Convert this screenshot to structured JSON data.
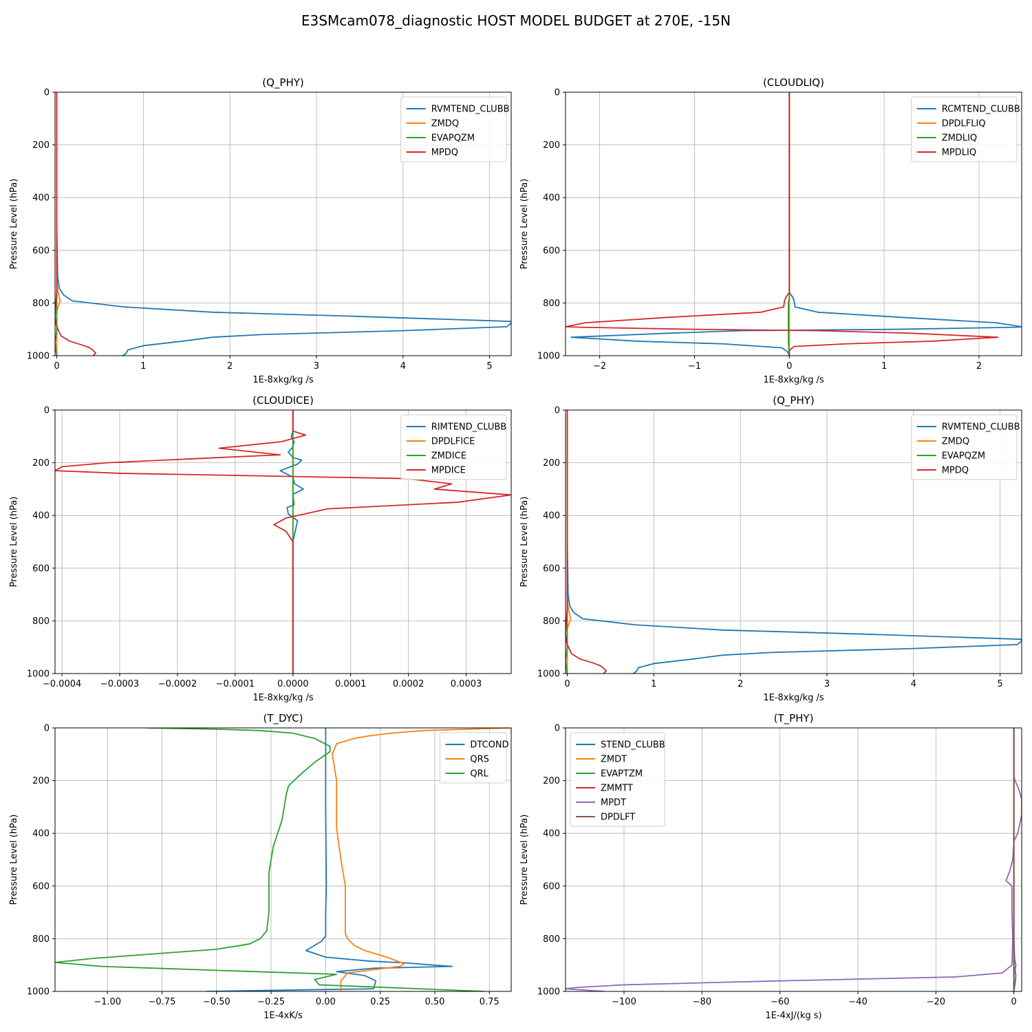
{
  "figure": {
    "title": "E3SMcam078_diagnostic HOST MODEL BUDGET at 270E, -15N"
  },
  "chart_data": [
    {
      "type": "line",
      "title": "(Q_PHY)",
      "xlabel": "1E-8xkg/kg /s",
      "ylabel": "Pressure Level (hPa)",
      "xlim": [
        -0.02,
        5.25
      ],
      "ylim": [
        1000,
        0
      ],
      "xticks": [
        0,
        1,
        2,
        3,
        4,
        5
      ],
      "xtick_labels": [
        "0",
        "1",
        "2",
        "3",
        "4",
        "5"
      ],
      "yticks": [
        0,
        200,
        400,
        600,
        800,
        1000
      ],
      "ytick_labels": [
        "0",
        "200",
        "400",
        "600",
        "800",
        "1000"
      ],
      "grid": true,
      "legend": "top-right",
      "series": [
        {
          "name": "RVMTEND_CLUBB",
          "color": "#1f77b4",
          "x": [
            0,
            0,
            0,
            0.01,
            0.03,
            0.08,
            0.18,
            0.78,
            1.8,
            3.4,
            5.25,
            5.25,
            5.2,
            4.0,
            2.35,
            1.8,
            1.45,
            1.0,
            0.82,
            0.8,
            0.76
          ],
          "y": [
            0,
            200,
            500,
            700,
            745,
            770,
            792,
            815,
            835,
            850,
            870,
            876,
            890,
            905,
            920,
            930,
            945,
            962,
            978,
            992,
            1000
          ]
        },
        {
          "name": "ZMDQ",
          "color": "#ff7f0e",
          "x": [
            0,
            0,
            0,
            0.01,
            0.03,
            0.04,
            0.02,
            0,
            0
          ],
          "y": [
            0,
            400,
            700,
            750,
            780,
            795,
            810,
            830,
            1000
          ]
        },
        {
          "name": "EVAPQZM",
          "color": "#2ca02c",
          "x": [
            0,
            0,
            0,
            -0.01,
            -0.02,
            -0.01,
            0
          ],
          "y": [
            0,
            700,
            900,
            930,
            950,
            980,
            1000
          ]
        },
        {
          "name": "MPDQ",
          "color": "#d62728",
          "x": [
            0,
            0,
            0,
            0,
            -0.01,
            -0.02,
            -0.01,
            0.02,
            0.05,
            0.15,
            0.3,
            0.38,
            0.42,
            0.45,
            0.42
          ],
          "y": [
            0,
            300,
            500,
            750,
            800,
            850,
            880,
            905,
            925,
            945,
            960,
            970,
            980,
            990,
            1000
          ]
        }
      ]
    },
    {
      "type": "line",
      "title": "(CLOUDLIQ)",
      "xlabel": "1E-8xkg/kg /s",
      "ylabel": "Pressure Level (hPa)",
      "xlim": [
        -2.36,
        2.45
      ],
      "ylim": [
        1000,
        0
      ],
      "xticks": [
        -2,
        -1,
        0,
        1,
        2
      ],
      "xtick_labels": [
        "−2",
        "−1",
        "0",
        "1",
        "2"
      ],
      "yticks": [
        0,
        200,
        400,
        600,
        800,
        1000
      ],
      "ytick_labels": [
        "0",
        "200",
        "400",
        "600",
        "800",
        "1000"
      ],
      "grid": true,
      "legend": "top-right",
      "series": [
        {
          "name": "RCMTEND_CLUBB",
          "color": "#1f77b4",
          "x": [
            0,
            0,
            0,
            0.03,
            0.05,
            0.06,
            0.3,
            1.2,
            2.18,
            2.45,
            2.4,
            1.1,
            -0.5,
            -1.3,
            -2.3,
            -1.6,
            -0.7,
            -0.08,
            -0.02,
            0
          ],
          "y": [
            0,
            600,
            760,
            775,
            790,
            815,
            835,
            855,
            875,
            890,
            892,
            900,
            905,
            915,
            930,
            945,
            955,
            970,
            985,
            1000
          ]
        },
        {
          "name": "DPDLFLIQ",
          "color": "#ff7f0e",
          "x": [
            0,
            0,
            0
          ],
          "y": [
            0,
            500,
            1000
          ]
        },
        {
          "name": "ZMDLIQ",
          "color": "#2ca02c",
          "x": [
            0,
            0,
            -0.01,
            -0.01,
            0
          ],
          "y": [
            0,
            780,
            800,
            950,
            1000
          ]
        },
        {
          "name": "MPDLIQ",
          "color": "#d62728",
          "x": [
            0,
            0,
            0,
            -0.03,
            -0.05,
            -0.06,
            -0.3,
            -1.3,
            -2.15,
            -2.36,
            -2.2,
            -1.0,
            0.3,
            1.3,
            2.2,
            1.5,
            0.6,
            0.05,
            0,
            0
          ],
          "y": [
            0,
            600,
            760,
            775,
            790,
            815,
            835,
            855,
            875,
            890,
            892,
            900,
            905,
            915,
            930,
            945,
            955,
            965,
            980,
            1000
          ]
        }
      ]
    },
    {
      "type": "line",
      "title": "(CLOUDICE)",
      "xlabel": "1E-8xkg/kg /s",
      "ylabel": "Pressure Level (hPa)",
      "xlim": [
        -0.000412,
        0.000378
      ],
      "ylim": [
        1000,
        0
      ],
      "xticks": [
        -0.0004,
        -0.0003,
        -0.0002,
        -0.0001,
        0,
        0.0001,
        0.0002,
        0.0003
      ],
      "xtick_labels": [
        "−0.0004",
        "−0.0003",
        "−0.0002",
        "−0.0001",
        "0.0000",
        "0.0001",
        "0.0002",
        "0.0003"
      ],
      "yticks": [
        0,
        200,
        400,
        600,
        800,
        1000
      ],
      "ytick_labels": [
        "0",
        "200",
        "400",
        "600",
        "800",
        "1000"
      ],
      "grid": true,
      "legend": "top-right",
      "series": [
        {
          "name": "RIMTEND_CLUBB",
          "color": "#1f77b4",
          "x": [
            0,
            0,
            -3e-06,
            2e-06,
            0,
            -8e-06,
            0,
            1.5e-05,
            8e-06,
            -2.2e-05,
            0,
            3e-06,
            1.8e-05,
            0,
            2e-06,
            -1e-05,
            -8e-06,
            8e-06,
            5e-06,
            0,
            0
          ],
          "y": [
            0,
            80,
            100,
            120,
            140,
            160,
            180,
            190,
            205,
            230,
            255,
            280,
            300,
            320,
            360,
            370,
            395,
            420,
            450,
            500,
            1000
          ]
        },
        {
          "name": "DPDLFICE",
          "color": "#ff7f0e",
          "x": [
            0,
            0
          ],
          "y": [
            0,
            1000
          ]
        },
        {
          "name": "ZMDICE",
          "color": "#2ca02c",
          "x": [
            0,
            0
          ],
          "y": [
            0,
            1000
          ]
        },
        {
          "name": "MPDICE",
          "color": "#d62728",
          "x": [
            0,
            0,
            2.2e-05,
            -2e-05,
            -0.000128,
            -2.2e-05,
            -0.000125,
            -0.000322,
            -0.0004,
            -0.000412,
            -0.0003,
            0.000195,
            0.000275,
            0.000245,
            0.000378,
            0.000285,
            6e-05,
            -1.2e-05,
            -3.3e-05,
            -1.2e-05,
            0,
            0
          ],
          "y": [
            0,
            80,
            95,
            120,
            145,
            170,
            180,
            200,
            215,
            230,
            240,
            260,
            280,
            300,
            322,
            350,
            375,
            410,
            435,
            460,
            500,
            1000
          ]
        }
      ]
    },
    {
      "type": "line",
      "title": "(Q_PHY)",
      "xlabel": "1E-8xkg/kg /s",
      "ylabel": "Pressure Level (hPa)",
      "xlim": [
        -0.02,
        5.25
      ],
      "ylim": [
        1000,
        0
      ],
      "xticks": [
        0,
        1,
        2,
        3,
        4,
        5
      ],
      "xtick_labels": [
        "0",
        "1",
        "2",
        "3",
        "4",
        "5"
      ],
      "yticks": [
        0,
        200,
        400,
        600,
        800,
        1000
      ],
      "ytick_labels": [
        "0",
        "200",
        "400",
        "600",
        "800",
        "1000"
      ],
      "grid": true,
      "legend": "top-right",
      "series": [
        {
          "name": "RVMTEND_CLUBB",
          "color": "#1f77b4",
          "x": [
            0,
            0,
            0,
            0.01,
            0.03,
            0.08,
            0.18,
            0.78,
            1.8,
            3.4,
            5.25,
            5.25,
            5.2,
            4.0,
            2.35,
            1.8,
            1.45,
            1.0,
            0.82,
            0.8,
            0.76
          ],
          "y": [
            0,
            200,
            500,
            700,
            745,
            770,
            792,
            815,
            835,
            850,
            870,
            876,
            890,
            905,
            920,
            930,
            945,
            962,
            978,
            992,
            1000
          ]
        },
        {
          "name": "ZMDQ",
          "color": "#ff7f0e",
          "x": [
            0,
            0,
            0,
            0.01,
            0.03,
            0.04,
            0.02,
            0,
            0
          ],
          "y": [
            0,
            400,
            700,
            750,
            780,
            795,
            810,
            830,
            1000
          ]
        },
        {
          "name": "EVAPQZM",
          "color": "#2ca02c",
          "x": [
            0,
            0,
            0,
            -0.01,
            -0.02,
            -0.01,
            0
          ],
          "y": [
            0,
            700,
            900,
            930,
            950,
            980,
            1000
          ]
        },
        {
          "name": "MPDQ",
          "color": "#d62728",
          "x": [
            0,
            0,
            0,
            0,
            -0.01,
            -0.02,
            -0.01,
            0.02,
            0.05,
            0.15,
            0.3,
            0.38,
            0.42,
            0.45,
            0.42
          ],
          "y": [
            0,
            300,
            500,
            750,
            800,
            850,
            880,
            905,
            925,
            945,
            960,
            970,
            980,
            990,
            1000
          ]
        }
      ]
    },
    {
      "type": "line",
      "title": "(T_DYC)",
      "xlabel": "1E-4xK/s",
      "ylabel": "Pressure Level (hPa)",
      "xlim": [
        -1.24,
        0.85
      ],
      "ylim": [
        1000,
        0
      ],
      "xticks": [
        -1.0,
        -0.75,
        -0.5,
        -0.25,
        0.0,
        0.25,
        0.5,
        0.75
      ],
      "xtick_labels": [
        "−1.00",
        "−0.75",
        "−0.50",
        "−0.25",
        "0.00",
        "0.25",
        "0.50",
        "0.75"
      ],
      "yticks": [
        0,
        200,
        400,
        600,
        800,
        1000
      ],
      "ytick_labels": [
        "0",
        "200",
        "400",
        "600",
        "800",
        "1000"
      ],
      "grid": true,
      "legend": "top-right",
      "series": [
        {
          "name": "DTCOND",
          "color": "#1f77b4",
          "x": [
            0,
            0,
            0.002,
            0.003,
            0,
            0,
            -0.02,
            -0.06,
            -0.09,
            0,
            0.2,
            0.37,
            0.46,
            0.58,
            0.22,
            0.05,
            0.18,
            0.23,
            0.22,
            -0.55
          ],
          "y": [
            0,
            300,
            500,
            600,
            700,
            790,
            810,
            830,
            845,
            870,
            885,
            892,
            898,
            905,
            912,
            925,
            940,
            960,
            990,
            1000
          ]
        },
        {
          "name": "QRS",
          "color": "#ff7f0e",
          "x": [
            0.85,
            0.45,
            0.3,
            0.2,
            0.13,
            0.05,
            0.03,
            0.05,
            0.05,
            0.07,
            0.09,
            0.09,
            0.09,
            0.1,
            0.13,
            0.18,
            0.28,
            0.36,
            0.34,
            0.1,
            0.07,
            0.07
          ],
          "y": [
            0,
            10,
            20,
            30,
            40,
            60,
            100,
            200,
            380,
            500,
            600,
            700,
            780,
            800,
            825,
            845,
            870,
            895,
            905,
            930,
            960,
            1000
          ]
        },
        {
          "name": "QRL",
          "color": "#2ca02c",
          "x": [
            -0.82,
            -0.5,
            -0.3,
            -0.15,
            -0.05,
            0.02,
            0.02,
            -0.05,
            -0.12,
            -0.17,
            -0.18,
            -0.2,
            -0.22,
            -0.24,
            -0.25,
            -0.26,
            -0.26,
            -0.26,
            -0.27,
            -0.3,
            -0.35,
            -0.5,
            -1.07,
            -1.24,
            -1.03,
            -0.5,
            0.05,
            -0.05,
            -0.03,
            0.73
          ],
          "y": [
            0,
            5,
            10,
            20,
            40,
            70,
            90,
            130,
            180,
            220,
            250,
            350,
            400,
            450,
            500,
            550,
            600,
            700,
            770,
            800,
            820,
            840,
            875,
            890,
            905,
            920,
            935,
            955,
            975,
            1000
          ]
        }
      ]
    },
    {
      "type": "line",
      "title": "(T_PHY)",
      "xlabel": "1E-4xJ/(kg s)",
      "ylabel": "Pressure Level (hPa)",
      "xlim": [
        -115,
        2
      ],
      "ylim": [
        1000,
        0
      ],
      "xticks": [
        -100,
        -80,
        -60,
        -40,
        -20,
        0
      ],
      "xtick_labels": [
        "−100",
        "−80",
        "−60",
        "−40",
        "−20",
        "0"
      ],
      "yticks": [
        0,
        200,
        400,
        600,
        800,
        1000
      ],
      "ytick_labels": [
        "0",
        "200",
        "400",
        "600",
        "800",
        "1000"
      ],
      "grid": true,
      "legend": "top-left",
      "series": [
        {
          "name": "STEND_CLUBB",
          "color": "#1f77b4",
          "x": [
            0,
            0,
            0,
            0.2,
            0.5,
            0.3,
            0.5,
            0.4,
            0.2,
            0
          ],
          "y": [
            0,
            600,
            800,
            880,
            900,
            920,
            940,
            960,
            980,
            1000
          ]
        },
        {
          "name": "ZMDT",
          "color": "#ff7f0e",
          "x": [
            0,
            0
          ],
          "y": [
            0,
            1000
          ]
        },
        {
          "name": "EVAPTZM",
          "color": "#2ca02c",
          "x": [
            0,
            0
          ],
          "y": [
            0,
            1000
          ]
        },
        {
          "name": "ZMMTT",
          "color": "#d62728",
          "x": [
            0,
            0
          ],
          "y": [
            0,
            1000
          ]
        },
        {
          "name": "MPDT",
          "color": "#9467bd",
          "x": [
            0,
            0,
            0,
            0.3,
            1.2,
            2,
            2,
            1,
            0,
            -0.3,
            -1,
            -2,
            -0.5,
            -0.5,
            -0.3,
            -0.5,
            -3,
            -15,
            -60,
            -100,
            -112,
            -115,
            -105
          ],
          "y": [
            0,
            100,
            180,
            200,
            230,
            270,
            330,
            400,
            430,
            500,
            540,
            580,
            600,
            700,
            800,
            900,
            930,
            945,
            960,
            975,
            985,
            990,
            1000
          ]
        },
        {
          "name": "DPDLFT",
          "color": "#8c564b",
          "x": [
            0,
            0
          ],
          "y": [
            0,
            1000
          ]
        }
      ]
    }
  ]
}
